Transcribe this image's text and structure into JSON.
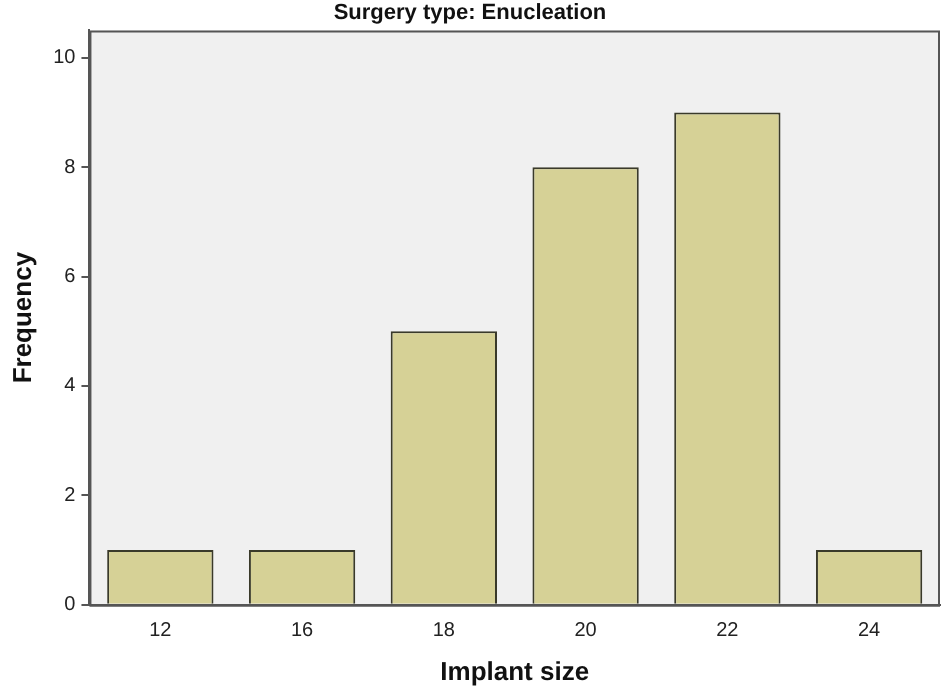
{
  "chart_data": {
    "type": "bar",
    "title": "Surgery type: Enucleation",
    "xlabel": "Implant size",
    "ylabel": "Frequency",
    "categories": [
      "12",
      "16",
      "18",
      "20",
      "22",
      "24"
    ],
    "values": [
      1,
      1,
      5,
      8,
      9,
      1
    ],
    "color": "#d6d196",
    "ylim": [
      0,
      10.5
    ],
    "yticks": [
      0,
      2,
      4,
      6,
      8,
      10
    ],
    "grid": false,
    "legend": false
  }
}
